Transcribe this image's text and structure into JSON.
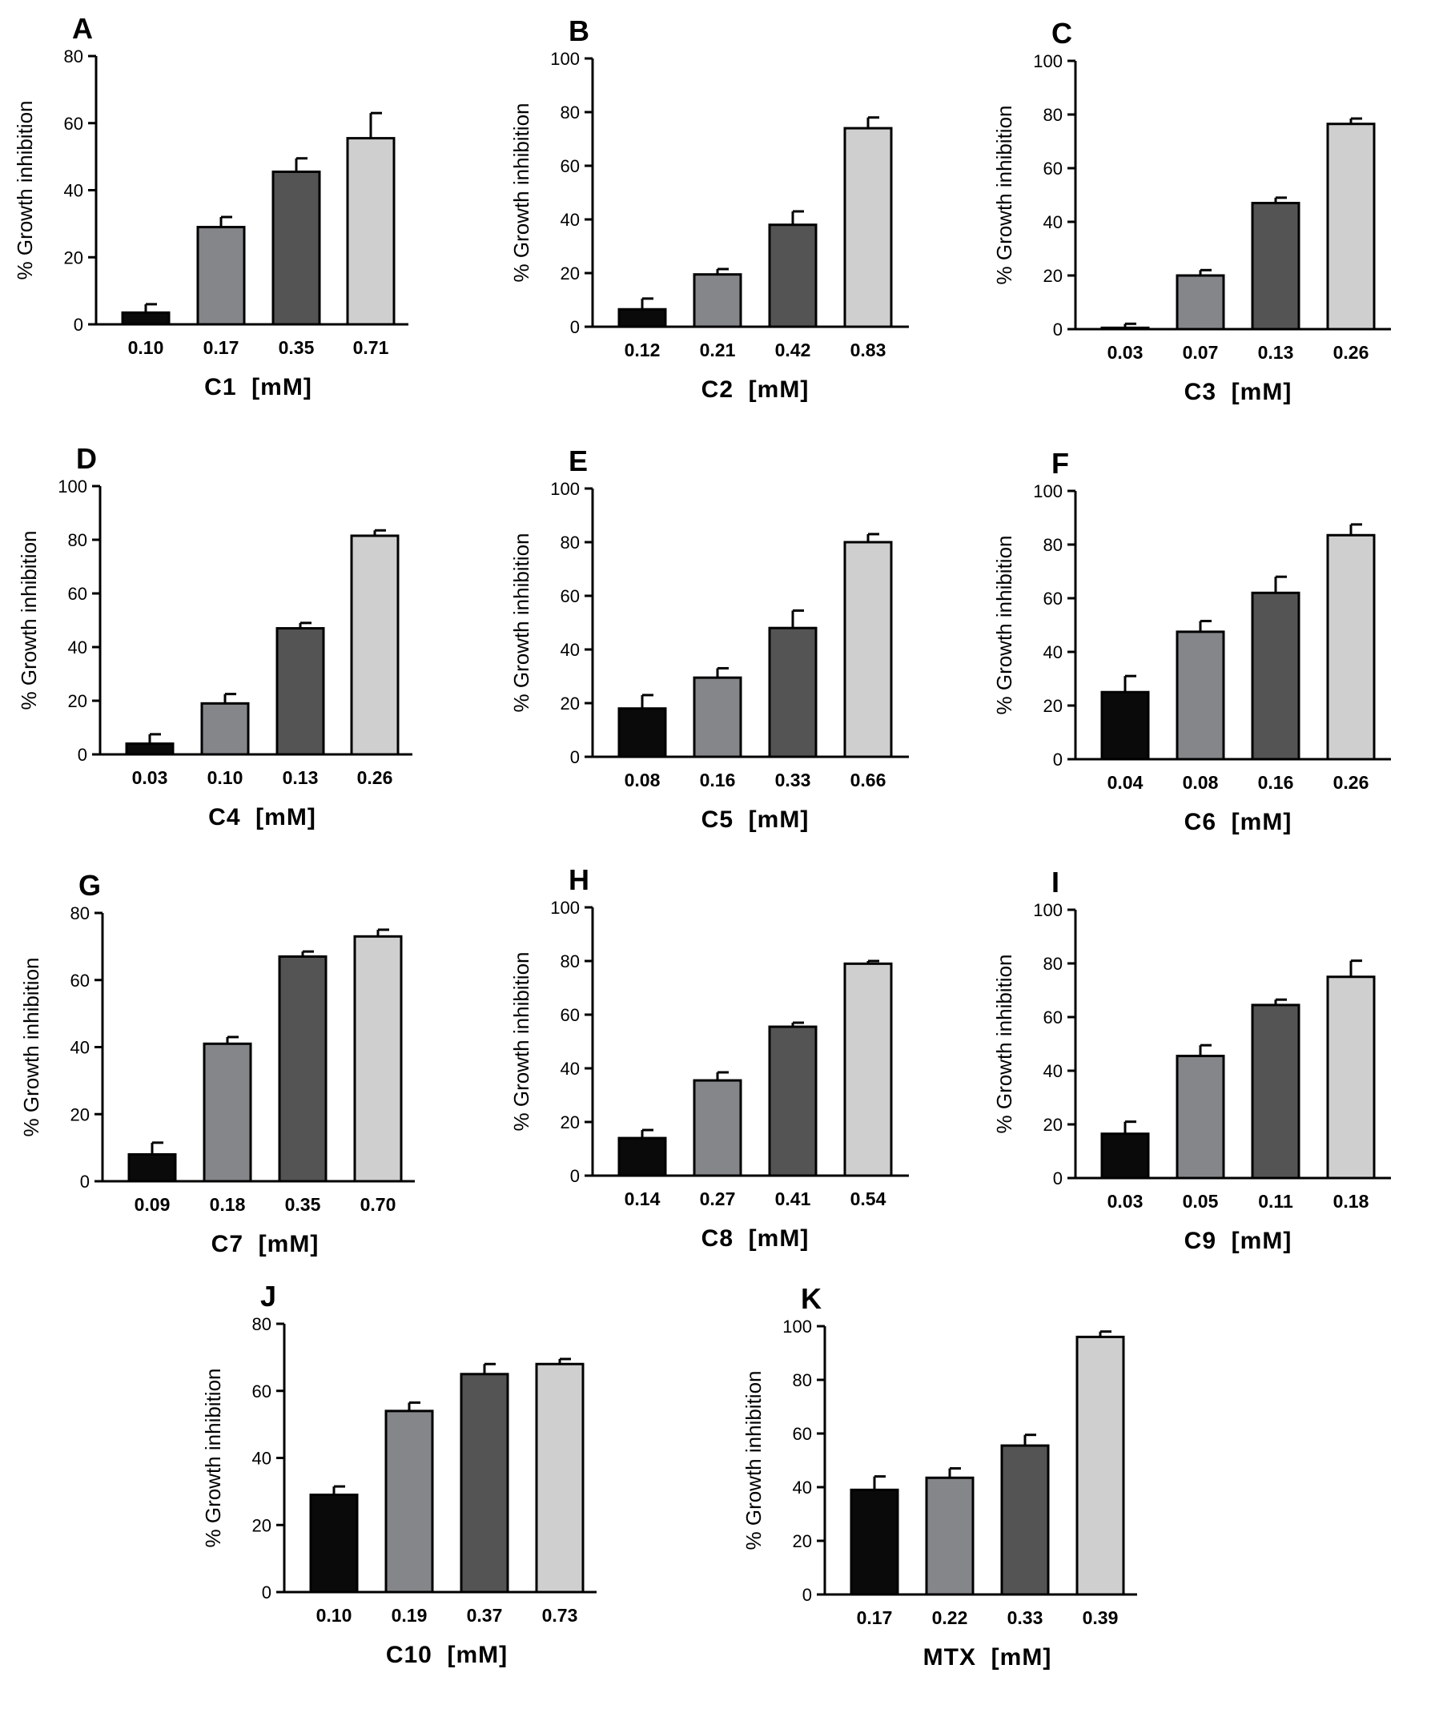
{
  "figure": {
    "colors": {
      "bar_fills": [
        "#0a0a0a",
        "#85868a",
        "#545454",
        "#cfcfcf"
      ],
      "stroke": "#000000"
    },
    "ylabel": "% Growth inhibition"
  },
  "chart_data": [
    {
      "type": "bar",
      "letter": "A",
      "title": "",
      "xlabel": "C1  [mM]",
      "ylabel": "% Growth inhibition",
      "ylim": [
        0,
        80
      ],
      "yticks": [
        0,
        20,
        40,
        60,
        80
      ],
      "categories": [
        "0.10",
        "0.17",
        "0.35",
        "0.71"
      ],
      "values": [
        3.5,
        29,
        45.5,
        55.5
      ],
      "errors": [
        2.5,
        3,
        4,
        7.5
      ]
    },
    {
      "type": "bar",
      "letter": "B",
      "title": "",
      "xlabel": "C2  [mM]",
      "ylabel": "% Growth inhibition",
      "ylim": [
        0,
        100
      ],
      "yticks": [
        0,
        20,
        40,
        60,
        80,
        100
      ],
      "categories": [
        "0.12",
        "0.21",
        "0.42",
        "0.83"
      ],
      "values": [
        6.5,
        19.5,
        38,
        74
      ],
      "errors": [
        4,
        2,
        5,
        4
      ]
    },
    {
      "type": "bar",
      "letter": "C",
      "title": "",
      "xlabel": "C3  [mM]",
      "ylabel": "% Growth inhibition",
      "ylim": [
        0,
        100
      ],
      "yticks": [
        0,
        20,
        40,
        60,
        80,
        100
      ],
      "categories": [
        "0.03",
        "0.07",
        "0.13",
        "0.26"
      ],
      "values": [
        0.5,
        20,
        47,
        76.5
      ],
      "errors": [
        1.5,
        2,
        2,
        2
      ]
    },
    {
      "type": "bar",
      "letter": "D",
      "title": "",
      "xlabel": "C4  [mM]",
      "ylabel": "% Growth inhibition",
      "ylim": [
        0,
        100
      ],
      "yticks": [
        0,
        20,
        40,
        60,
        80,
        100
      ],
      "categories": [
        "0.03",
        "0.10",
        "0.13",
        "0.26"
      ],
      "values": [
        4,
        19,
        47,
        81.5
      ],
      "errors": [
        3.5,
        3.5,
        2,
        2
      ]
    },
    {
      "type": "bar",
      "letter": "E",
      "title": "",
      "xlabel": "C5  [mM]",
      "ylabel": "% Growth inhibition",
      "ylim": [
        0,
        100
      ],
      "yticks": [
        0,
        20,
        40,
        60,
        80,
        100
      ],
      "categories": [
        "0.08",
        "0.16",
        "0.33",
        "0.66"
      ],
      "values": [
        18,
        29.5,
        48,
        80
      ],
      "errors": [
        5,
        3.5,
        6.5,
        3
      ]
    },
    {
      "type": "bar",
      "letter": "F",
      "title": "",
      "xlabel": "C6  [mM]",
      "ylabel": "% Growth inhibition",
      "ylim": [
        0,
        100
      ],
      "yticks": [
        0,
        20,
        40,
        60,
        80,
        100
      ],
      "categories": [
        "0.04",
        "0.08",
        "0.16",
        "0.26"
      ],
      "values": [
        25,
        47.5,
        62,
        83.5
      ],
      "errors": [
        6,
        4,
        6,
        4
      ]
    },
    {
      "type": "bar",
      "letter": "G",
      "title": "",
      "xlabel": "C7  [mM]",
      "ylabel": "% Growth inhibition",
      "ylim": [
        0,
        80
      ],
      "yticks": [
        0,
        20,
        40,
        60,
        80
      ],
      "categories": [
        "0.09",
        "0.18",
        "0.35",
        "0.70"
      ],
      "values": [
        8,
        41,
        67,
        73
      ],
      "errors": [
        3.5,
        2,
        1.5,
        2
      ]
    },
    {
      "type": "bar",
      "letter": "H",
      "title": "",
      "xlabel": "C8  [mM]",
      "ylabel": "% Growth inhibition",
      "ylim": [
        0,
        100
      ],
      "yticks": [
        0,
        20,
        40,
        60,
        80,
        100
      ],
      "categories": [
        "0.14",
        "0.27",
        "0.41",
        "0.54"
      ],
      "values": [
        14,
        35.5,
        55.5,
        79
      ],
      "errors": [
        3,
        3,
        1.5,
        1
      ]
    },
    {
      "type": "bar",
      "letter": "I",
      "title": "",
      "xlabel": "C9  [mM]",
      "ylabel": "% Growth inhibition",
      "ylim": [
        0,
        100
      ],
      "yticks": [
        0,
        20,
        40,
        60,
        80,
        100
      ],
      "categories": [
        "0.03",
        "0.05",
        "0.11",
        "0.18"
      ],
      "values": [
        16.5,
        45.5,
        64.5,
        75
      ],
      "errors": [
        4.5,
        4,
        2,
        6
      ]
    },
    {
      "type": "bar",
      "letter": "J",
      "title": "",
      "xlabel": "C10  [mM]",
      "ylabel": "% Growth inhibition",
      "ylim": [
        0,
        80
      ],
      "yticks": [
        0,
        20,
        40,
        60,
        80
      ],
      "categories": [
        "0.10",
        "0.19",
        "0.37",
        "0.73"
      ],
      "values": [
        29,
        54,
        65,
        68
      ],
      "errors": [
        2.5,
        2.5,
        3,
        1.5
      ]
    },
    {
      "type": "bar",
      "letter": "K",
      "title": "",
      "xlabel": "MTX  [mM]",
      "ylabel": "% Growth inhibition",
      "ylim": [
        0,
        100
      ],
      "yticks": [
        0,
        20,
        40,
        60,
        80,
        100
      ],
      "categories": [
        "0.17",
        "0.22",
        "0.33",
        "0.39"
      ],
      "values": [
        39,
        43.5,
        55.5,
        96
      ],
      "errors": [
        5,
        3.5,
        4,
        2
      ]
    }
  ]
}
